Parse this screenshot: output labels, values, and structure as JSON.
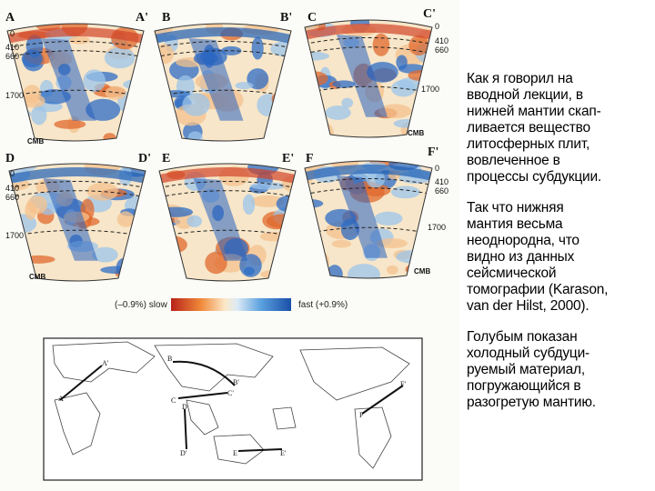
{
  "figure": {
    "sections": [
      {
        "start": "A",
        "end": "A'"
      },
      {
        "start": "B",
        "end": "B'"
      },
      {
        "start": "C",
        "end": "C'"
      },
      {
        "start": "D",
        "end": "D'"
      },
      {
        "start": "E",
        "end": "E'"
      },
      {
        "start": "F",
        "end": "F'"
      }
    ],
    "depths": {
      "surface": "0",
      "d410": "410",
      "d660": "660",
      "d1700": "1700",
      "cmb": "CMB"
    },
    "scale": {
      "slow_label": "(–0.9%) slow",
      "fast_label": "fast (+0.9%)",
      "slow_color": "#d8452a",
      "fast_color": "#2a6fc9"
    },
    "map": {
      "labels": [
        "A'",
        "A",
        "B",
        "B'",
        "C'",
        "C",
        "D",
        "D'",
        "E",
        "E'",
        "F",
        "F'"
      ]
    }
  },
  "text": {
    "paragraphs": [
      "Как я говорил на вводной лекции, в нижней мантии скап-ливается вещество литосферных плит, вовлеченное в процессы субдукции.",
      "Так что нижняя мантия весьма неоднородна, что видно из данных сейсмической томографии (Karason, van der Hilst, 2000).",
      "Голубым показан холодный субдуци-руемый материал, погружающийся в разогретую мантию."
    ],
    "lines": [
      [
        "Как я говорил на",
        "вводной лекции, в",
        "нижней мантии скап-",
        "ливается вещество",
        "литосферных плит,",
        "вовлеченное в",
        "процессы субдукции."
      ],
      [
        "Так что нижняя",
        "мантия весьма",
        "неоднородна, что",
        "видно из данных",
        "сейсмической",
        "томографии (Karason,",
        "van der Hilst, 2000)."
      ],
      [
        "Голубым показан",
        "холодный субдуци-",
        "руемый материал,",
        "погружающийся в",
        "разогретую мантию."
      ]
    ]
  }
}
